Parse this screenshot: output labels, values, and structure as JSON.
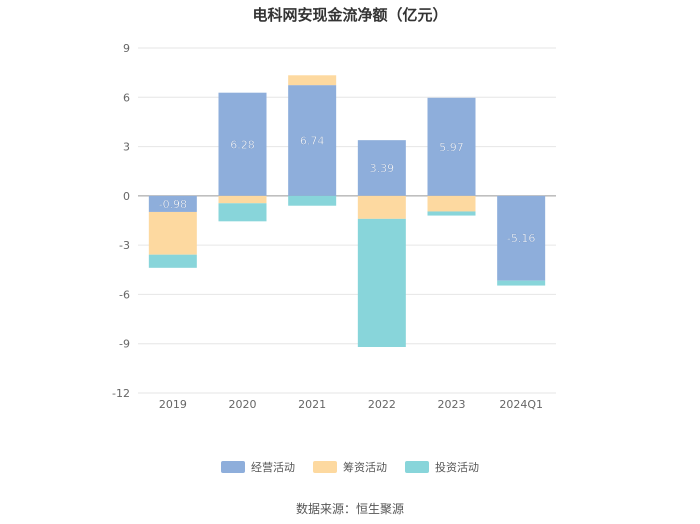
{
  "title": "电科网安现金流净额（亿元）",
  "source": "数据来源：恒生聚源",
  "colors": {
    "operating": "#8eaedb",
    "financing": "#fdd9a0",
    "investing": "#88d5da"
  },
  "chart_data": {
    "type": "bar",
    "stacked": true,
    "title": "电科网安现金流净额（亿元）",
    "categories": [
      "2019",
      "2020",
      "2021",
      "2022",
      "2023",
      "2024Q1"
    ],
    "ylim": [
      -12,
      9
    ],
    "yticks": [
      9,
      6,
      3,
      0,
      -3,
      -6,
      -9,
      -12
    ],
    "grid": true,
    "legend_position": "bottom",
    "series": [
      {
        "name": "经营活动",
        "color": "#8eaedb",
        "values": [
          -0.98,
          6.28,
          6.74,
          3.39,
          5.97,
          -5.16
        ],
        "labels": [
          "-0.98",
          "6.28",
          "6.74",
          "3.39",
          "5.97",
          "-5.16"
        ]
      },
      {
        "name": "筹资活动",
        "color": "#fdd9a0",
        "values": [
          -2.6,
          -0.45,
          0.6,
          -1.4,
          -0.95,
          0
        ]
      },
      {
        "name": "投资活动",
        "color": "#88d5da",
        "values": [
          -0.8,
          -1.1,
          -0.6,
          -7.8,
          -0.25,
          -0.3
        ]
      }
    ]
  }
}
